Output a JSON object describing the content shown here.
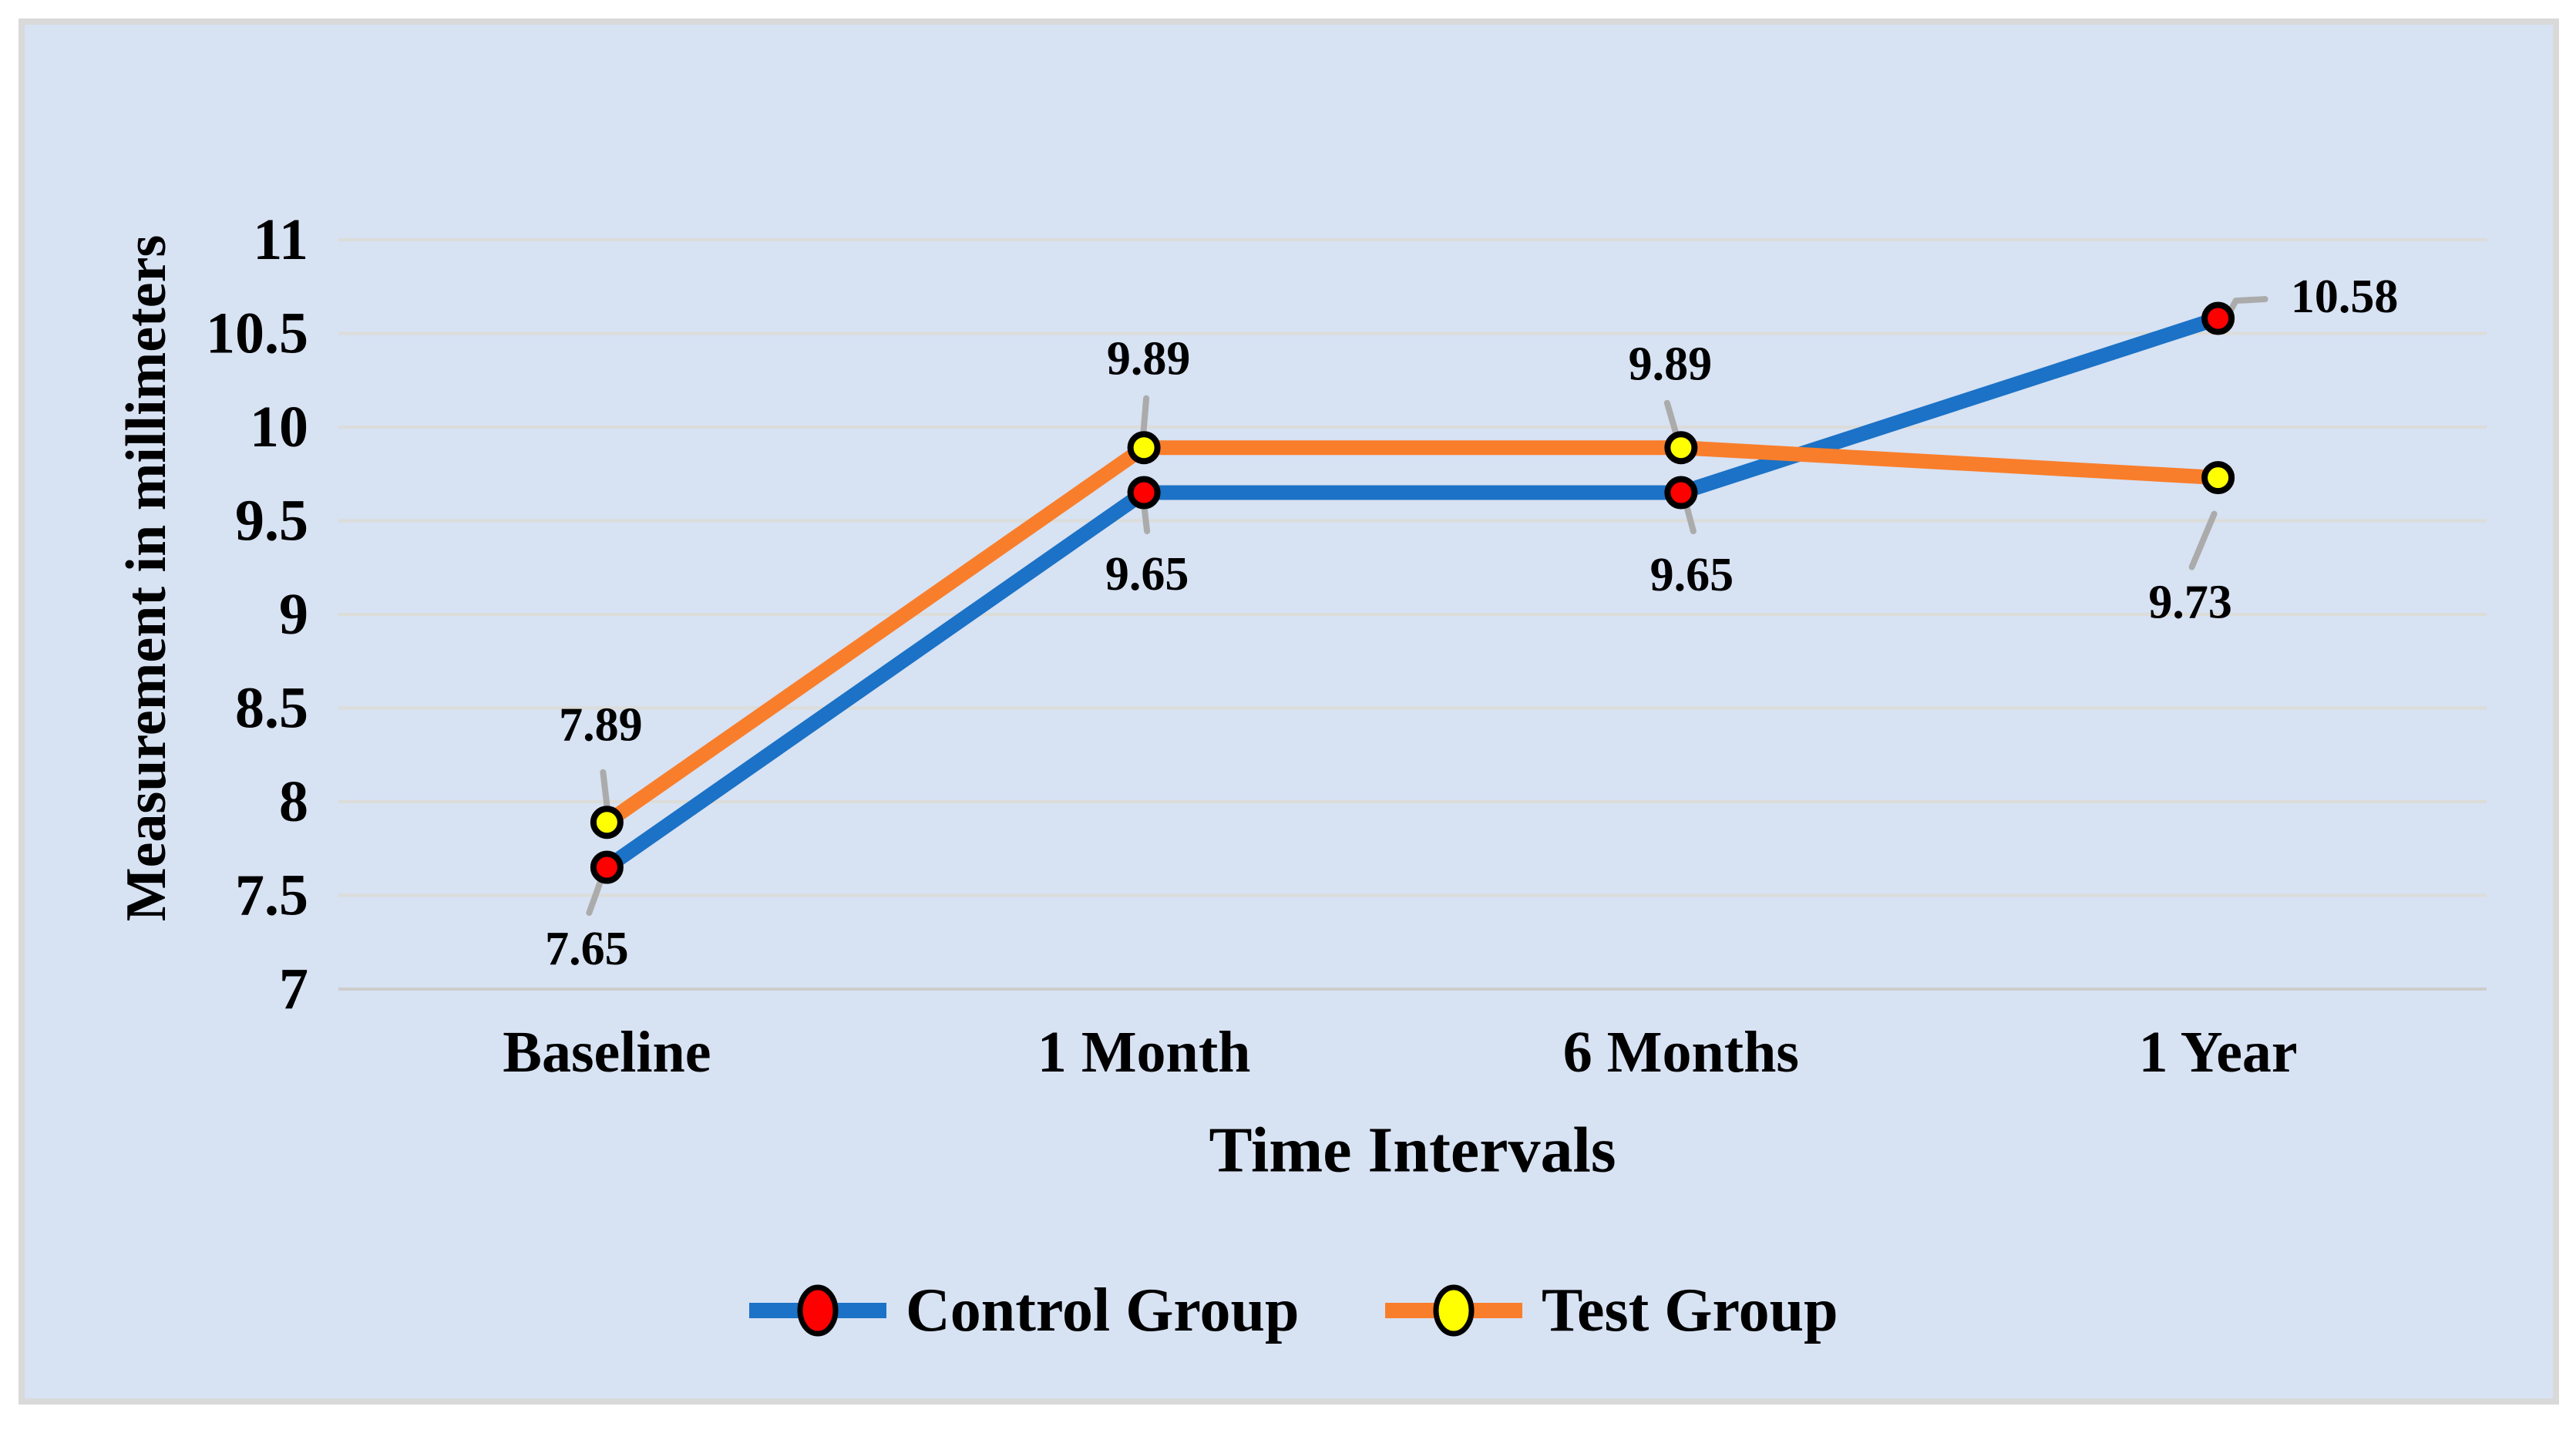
{
  "chart_data": {
    "type": "line",
    "title": "",
    "xlabel": "Time Intervals",
    "ylabel": "Measurement in millimeters",
    "categories": [
      "Baseline",
      "1 Month",
      "6 Months",
      "1 Year"
    ],
    "ylim": [
      7,
      11
    ],
    "ytick_step": 0.5,
    "yticks": [
      {
        "value": 11,
        "label": "11"
      },
      {
        "value": 10.5,
        "label": "10.5"
      },
      {
        "value": 10,
        "label": "10"
      },
      {
        "value": 9.5,
        "label": "9.5"
      },
      {
        "value": 9,
        "label": "9"
      },
      {
        "value": 8.5,
        "label": "8.5"
      },
      {
        "value": 8,
        "label": "8"
      },
      {
        "value": 7.5,
        "label": "7.5"
      },
      {
        "value": 7,
        "label": "7"
      }
    ],
    "grid": true,
    "legend_position": "bottom",
    "series": [
      {
        "name": "Control Group",
        "line_color": "#1b72c6",
        "marker_fill": "#fe0000",
        "marker_stroke": "#000000",
        "values": [
          7.65,
          9.65,
          9.65,
          10.58
        ],
        "labels": [
          "7.65",
          "9.65",
          "9.65",
          "10.58"
        ],
        "label_offsets": [
          [
            -26,
            106
          ],
          [
            4,
            106
          ],
          [
            14,
            107
          ],
          [
            164,
            -28
          ]
        ],
        "leader_lines": [
          [
            [
              -1,
              -2
            ],
            [
              -23,
              59
            ]
          ],
          [
            [
              -2,
              -2
            ],
            [
              4,
              50
            ]
          ],
          [
            [
              2,
              -2
            ],
            [
              16,
              50
            ]
          ],
          [
            [
              4,
              13
            ],
            [
              23,
              -23
            ],
            [
              61,
              -25
            ]
          ]
        ]
      },
      {
        "name": "Test Group",
        "line_color": "#f97e2b",
        "marker_fill": "#ffff00",
        "marker_stroke": "#000000",
        "values": [
          7.89,
          9.89,
          9.89,
          9.73
        ],
        "labels": [
          "7.89",
          "9.89",
          "9.89",
          "9.73"
        ],
        "label_offsets": [
          [
            -8,
            -126
          ],
          [
            6,
            -115
          ],
          [
            -14,
            -108
          ],
          [
            -36,
            162
          ]
        ],
        "leader_lines": [
          [
            [
              2,
              -5
            ],
            [
              -5,
              -65
            ]
          ],
          [
            [
              -2,
              -4
            ],
            [
              3,
              -64
            ]
          ],
          [
            [
              -2,
              -3
            ],
            [
              -18,
              -58
            ]
          ],
          [
            [
              -5,
              47
            ],
            [
              -34,
              116
            ]
          ]
        ]
      }
    ],
    "colors": {
      "panel_background": "#d7e2f3",
      "panel_border": "#d9d9d9",
      "gridline": "#dcdcd9",
      "axis_line": "#cdcdca",
      "leader_line": "#ababab",
      "text": "#000000",
      "outer_background": "#ffffff"
    }
  }
}
